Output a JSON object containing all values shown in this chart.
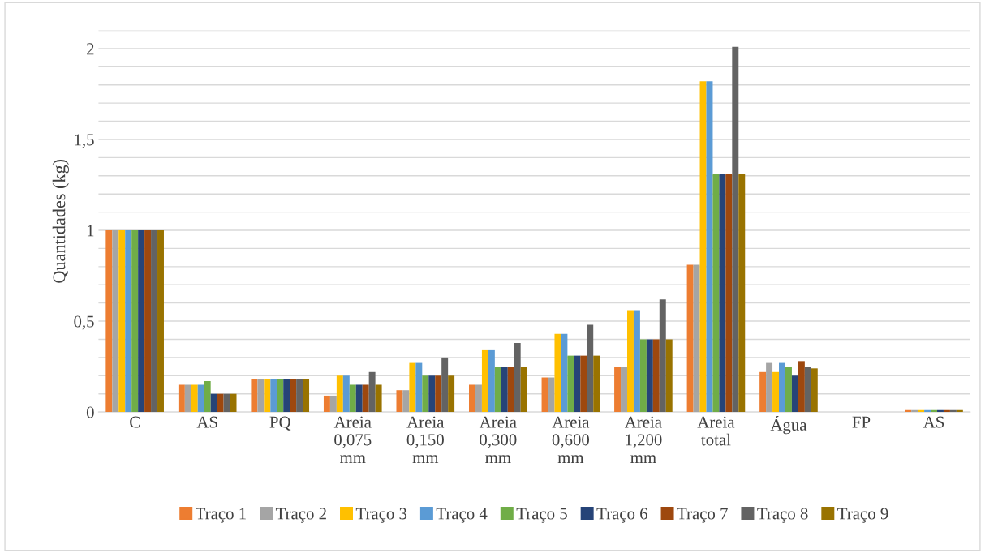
{
  "chart_data": {
    "type": "bar",
    "ylabel": "Quantidades (kg)",
    "categories": [
      "C",
      "AS",
      "PQ",
      "Areia\n0,075\nmm",
      "Areia\n0,150\nmm",
      "Areia\n0,300\nmm",
      "Areia\n0,600\nmm",
      "Areia\n1,200\nmm",
      "Areia\ntotal",
      "Água",
      "FP",
      "AS"
    ],
    "series": [
      {
        "name": "Traço 1",
        "color": "#ed7d31",
        "values": [
          1,
          0.15,
          0.18,
          0.09,
          0.12,
          0.15,
          0.19,
          0.25,
          0.81,
          0.22,
          0,
          0.01
        ]
      },
      {
        "name": "Traço 2",
        "color": "#a5a5a5",
        "values": [
          1,
          0.15,
          0.18,
          0.09,
          0.12,
          0.15,
          0.19,
          0.25,
          0.81,
          0.27,
          0,
          0.01
        ]
      },
      {
        "name": "Traço 3",
        "color": "#ffc000",
        "values": [
          1,
          0.15,
          0.18,
          0.2,
          0.27,
          0.34,
          0.43,
          0.56,
          1.82,
          0.22,
          0,
          0.01
        ]
      },
      {
        "name": "Traço 4",
        "color": "#5b9bd5",
        "values": [
          1,
          0.15,
          0.18,
          0.2,
          0.27,
          0.34,
          0.43,
          0.56,
          1.82,
          0.27,
          0,
          0.01
        ]
      },
      {
        "name": "Traço 5",
        "color": "#70ad47",
        "values": [
          1,
          0.17,
          0.18,
          0.15,
          0.2,
          0.25,
          0.31,
          0.4,
          1.31,
          0.25,
          0,
          0.01
        ]
      },
      {
        "name": "Traço 6",
        "color": "#264478",
        "values": [
          1,
          0.1,
          0.18,
          0.15,
          0.2,
          0.25,
          0.31,
          0.4,
          1.31,
          0.2,
          0,
          0.01
        ]
      },
      {
        "name": "Traço 7",
        "color": "#9e480e",
        "values": [
          1,
          0.1,
          0.18,
          0.15,
          0.2,
          0.25,
          0.31,
          0.4,
          1.31,
          0.28,
          0,
          0.01
        ]
      },
      {
        "name": "Traço 8",
        "color": "#636363",
        "values": [
          1,
          0.1,
          0.18,
          0.22,
          0.3,
          0.38,
          0.48,
          0.62,
          2.01,
          0.25,
          0,
          0.01
        ]
      },
      {
        "name": "Traço 9",
        "color": "#997300",
        "values": [
          1,
          0.1,
          0.18,
          0.15,
          0.2,
          0.25,
          0.31,
          0.4,
          1.31,
          0.24,
          0,
          0.01
        ]
      }
    ],
    "ylim": [
      0,
      2.1
    ],
    "yticks": [
      0,
      {
        "value": 0.1,
        "label": null
      },
      {
        "value": 0.2,
        "label": null
      },
      {
        "value": 0.3,
        "label": null
      },
      {
        "value": 0.4,
        "label": null
      },
      {
        "value": 0.5,
        "label": "0,5"
      },
      {
        "value": 0.6,
        "label": null
      },
      {
        "value": 0.7,
        "label": null
      },
      {
        "value": 0.8,
        "label": null
      },
      {
        "value": 0.9,
        "label": null
      },
      1,
      {
        "value": 1.1,
        "label": null
      },
      {
        "value": 1.2,
        "label": null
      },
      {
        "value": 1.3,
        "label": null
      },
      {
        "value": 1.4,
        "label": null
      },
      {
        "value": 1.5,
        "label": "1,5"
      },
      {
        "value": 1.6,
        "label": null
      },
      {
        "value": 1.7,
        "label": null
      },
      {
        "value": 1.8,
        "label": null
      },
      {
        "value": 1.9,
        "label": null
      },
      2,
      {
        "value": 2.1,
        "label": null
      }
    ],
    "grid": "y",
    "legend": "bottom"
  }
}
